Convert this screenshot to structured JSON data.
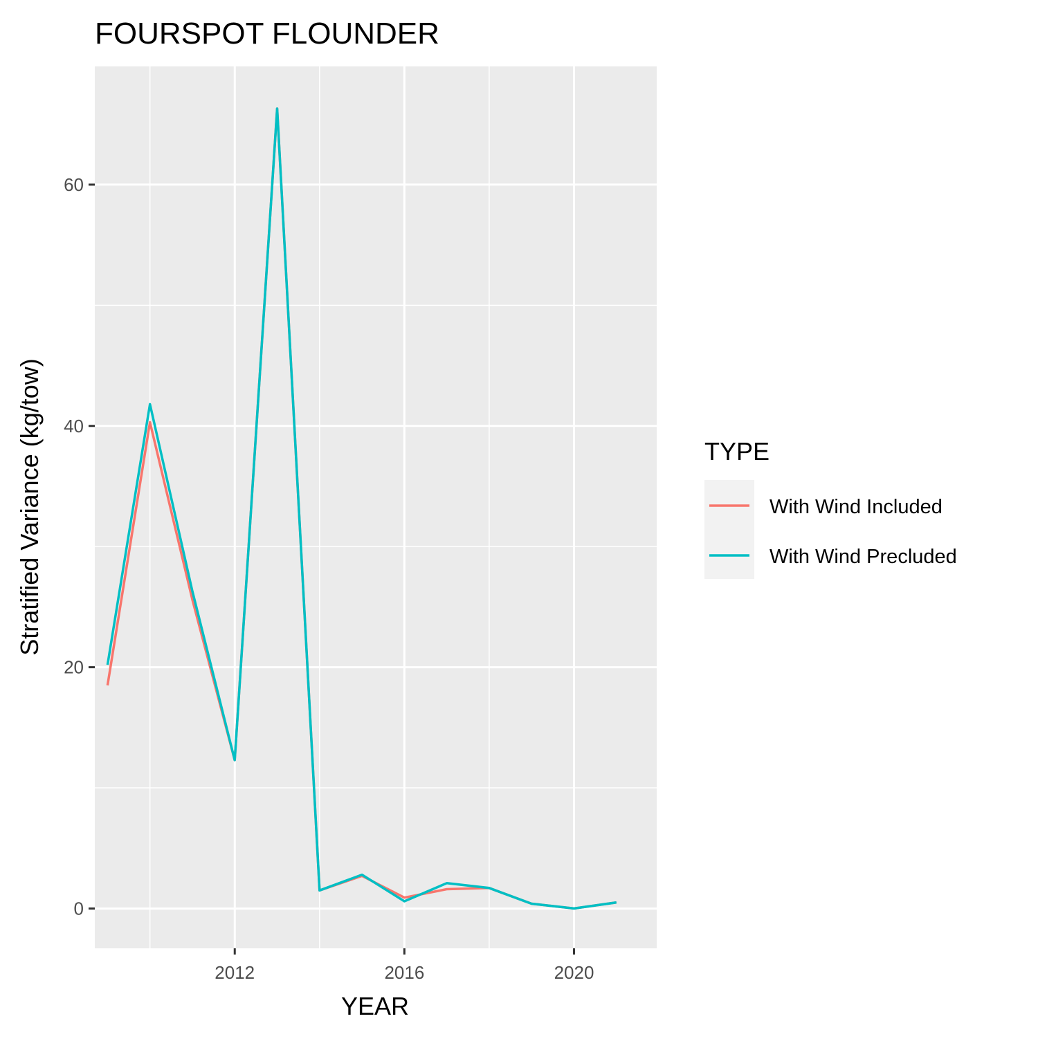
{
  "chart_data": {
    "type": "line",
    "title": "FOURSPOT FLOUNDER",
    "xlabel": "YEAR",
    "ylabel": "Stratified Variance (kg/tow)",
    "x": [
      2009,
      2010,
      2011,
      2012,
      2013,
      2014,
      2015,
      2016,
      2017,
      2018,
      2019,
      2020,
      2021
    ],
    "xlim": [
      2008.7,
      2021.95
    ],
    "ylim": [
      -3.3,
      69.8
    ],
    "x_ticks": [
      2012,
      2016,
      2020
    ],
    "x_tick_labels": [
      "2012",
      "2016",
      "2020"
    ],
    "y_ticks": [
      0,
      20,
      40,
      60
    ],
    "y_tick_labels": [
      "0",
      "20",
      "40",
      "60"
    ],
    "grid": true,
    "legend": {
      "title": "TYPE",
      "position": "right"
    },
    "series": [
      {
        "name": "With Wind Included",
        "color": "#F8766D",
        "values": [
          18.5,
          40.3,
          25.6,
          12.3,
          66.3,
          1.5,
          2.7,
          0.9,
          1.6,
          1.7,
          0.4,
          0.0,
          0.5
        ]
      },
      {
        "name": "With Wind Precluded",
        "color": "#00BFC4",
        "values": [
          20.2,
          41.8,
          26.3,
          12.3,
          66.3,
          1.5,
          2.8,
          0.6,
          2.1,
          1.7,
          0.4,
          0.0,
          0.5
        ]
      }
    ]
  }
}
